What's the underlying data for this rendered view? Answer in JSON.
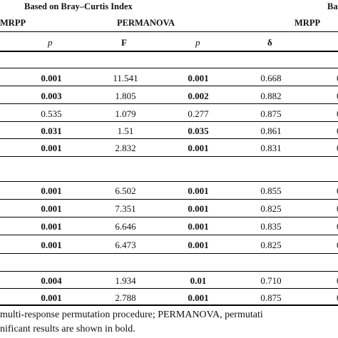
{
  "header": {
    "group_left": "Based on Bray–Curtis Index",
    "group_right": "Ba",
    "top_cols": [
      "MRPP",
      "PERMANOVA",
      "MRPP"
    ],
    "sub_cols": [
      "p",
      "F",
      "p",
      "δ"
    ],
    "sub_cut": "("
  },
  "sections": [
    {
      "rows": [
        {
          "mrpp_p": "0.001",
          "mrpp_p_bold": true,
          "F": "11.541",
          "perm_p": "0.001",
          "perm_p_bold": true,
          "delta": "0.668",
          "cut": "0"
        },
        {
          "mrpp_p": "0.003",
          "mrpp_p_bold": true,
          "F": "1.805",
          "perm_p": "0.002",
          "perm_p_bold": true,
          "delta": "0.882",
          "cut": "0"
        },
        {
          "mrpp_p": "0.535",
          "mrpp_p_bold": false,
          "F": "1.079",
          "perm_p": "0.277",
          "perm_p_bold": false,
          "delta": "0.875",
          "cut": "0"
        },
        {
          "mrpp_p": "0.031",
          "mrpp_p_bold": true,
          "F": "1.51",
          "perm_p": "0.035",
          "perm_p_bold": true,
          "delta": "0.861",
          "cut": "0"
        },
        {
          "mrpp_p": "0.001",
          "mrpp_p_bold": true,
          "F": "2.832",
          "perm_p": "0.001",
          "perm_p_bold": true,
          "delta": "0.831",
          "cut": "0"
        }
      ]
    },
    {
      "rows": [
        {
          "mrpp_p": "0.001",
          "mrpp_p_bold": true,
          "F": "6.502",
          "perm_p": "0.001",
          "perm_p_bold": true,
          "delta": "0.855",
          "cut": "0"
        },
        {
          "mrpp_p": "0.001",
          "mrpp_p_bold": true,
          "F": "7.351",
          "perm_p": "0.001",
          "perm_p_bold": true,
          "delta": "0.825",
          "cut": "0"
        },
        {
          "mrpp_p": "0.001",
          "mrpp_p_bold": true,
          "F": "6.646",
          "perm_p": "0.001",
          "perm_p_bold": true,
          "delta": "0.835",
          "cut": "0"
        },
        {
          "mrpp_p": "0.001",
          "mrpp_p_bold": true,
          "F": "6.473",
          "perm_p": "0.001",
          "perm_p_bold": true,
          "delta": "0.825",
          "cut": "0"
        }
      ]
    },
    {
      "rows": [
        {
          "mrpp_p": "0.004",
          "mrpp_p_bold": true,
          "F": "1.934",
          "perm_p": "0.01",
          "perm_p_bold": true,
          "delta": "0.710",
          "cut": "0"
        },
        {
          "mrpp_p": "0.001",
          "mrpp_p_bold": true,
          "F": "2.788",
          "perm_p": "0.001",
          "perm_p_bold": true,
          "delta": "0.875",
          "cut": "0"
        }
      ]
    }
  ],
  "footnote": {
    "line1": "multi-response permutation procedure; PERMANOVA, permutati",
    "line2": "nificant results are shown in bold."
  }
}
